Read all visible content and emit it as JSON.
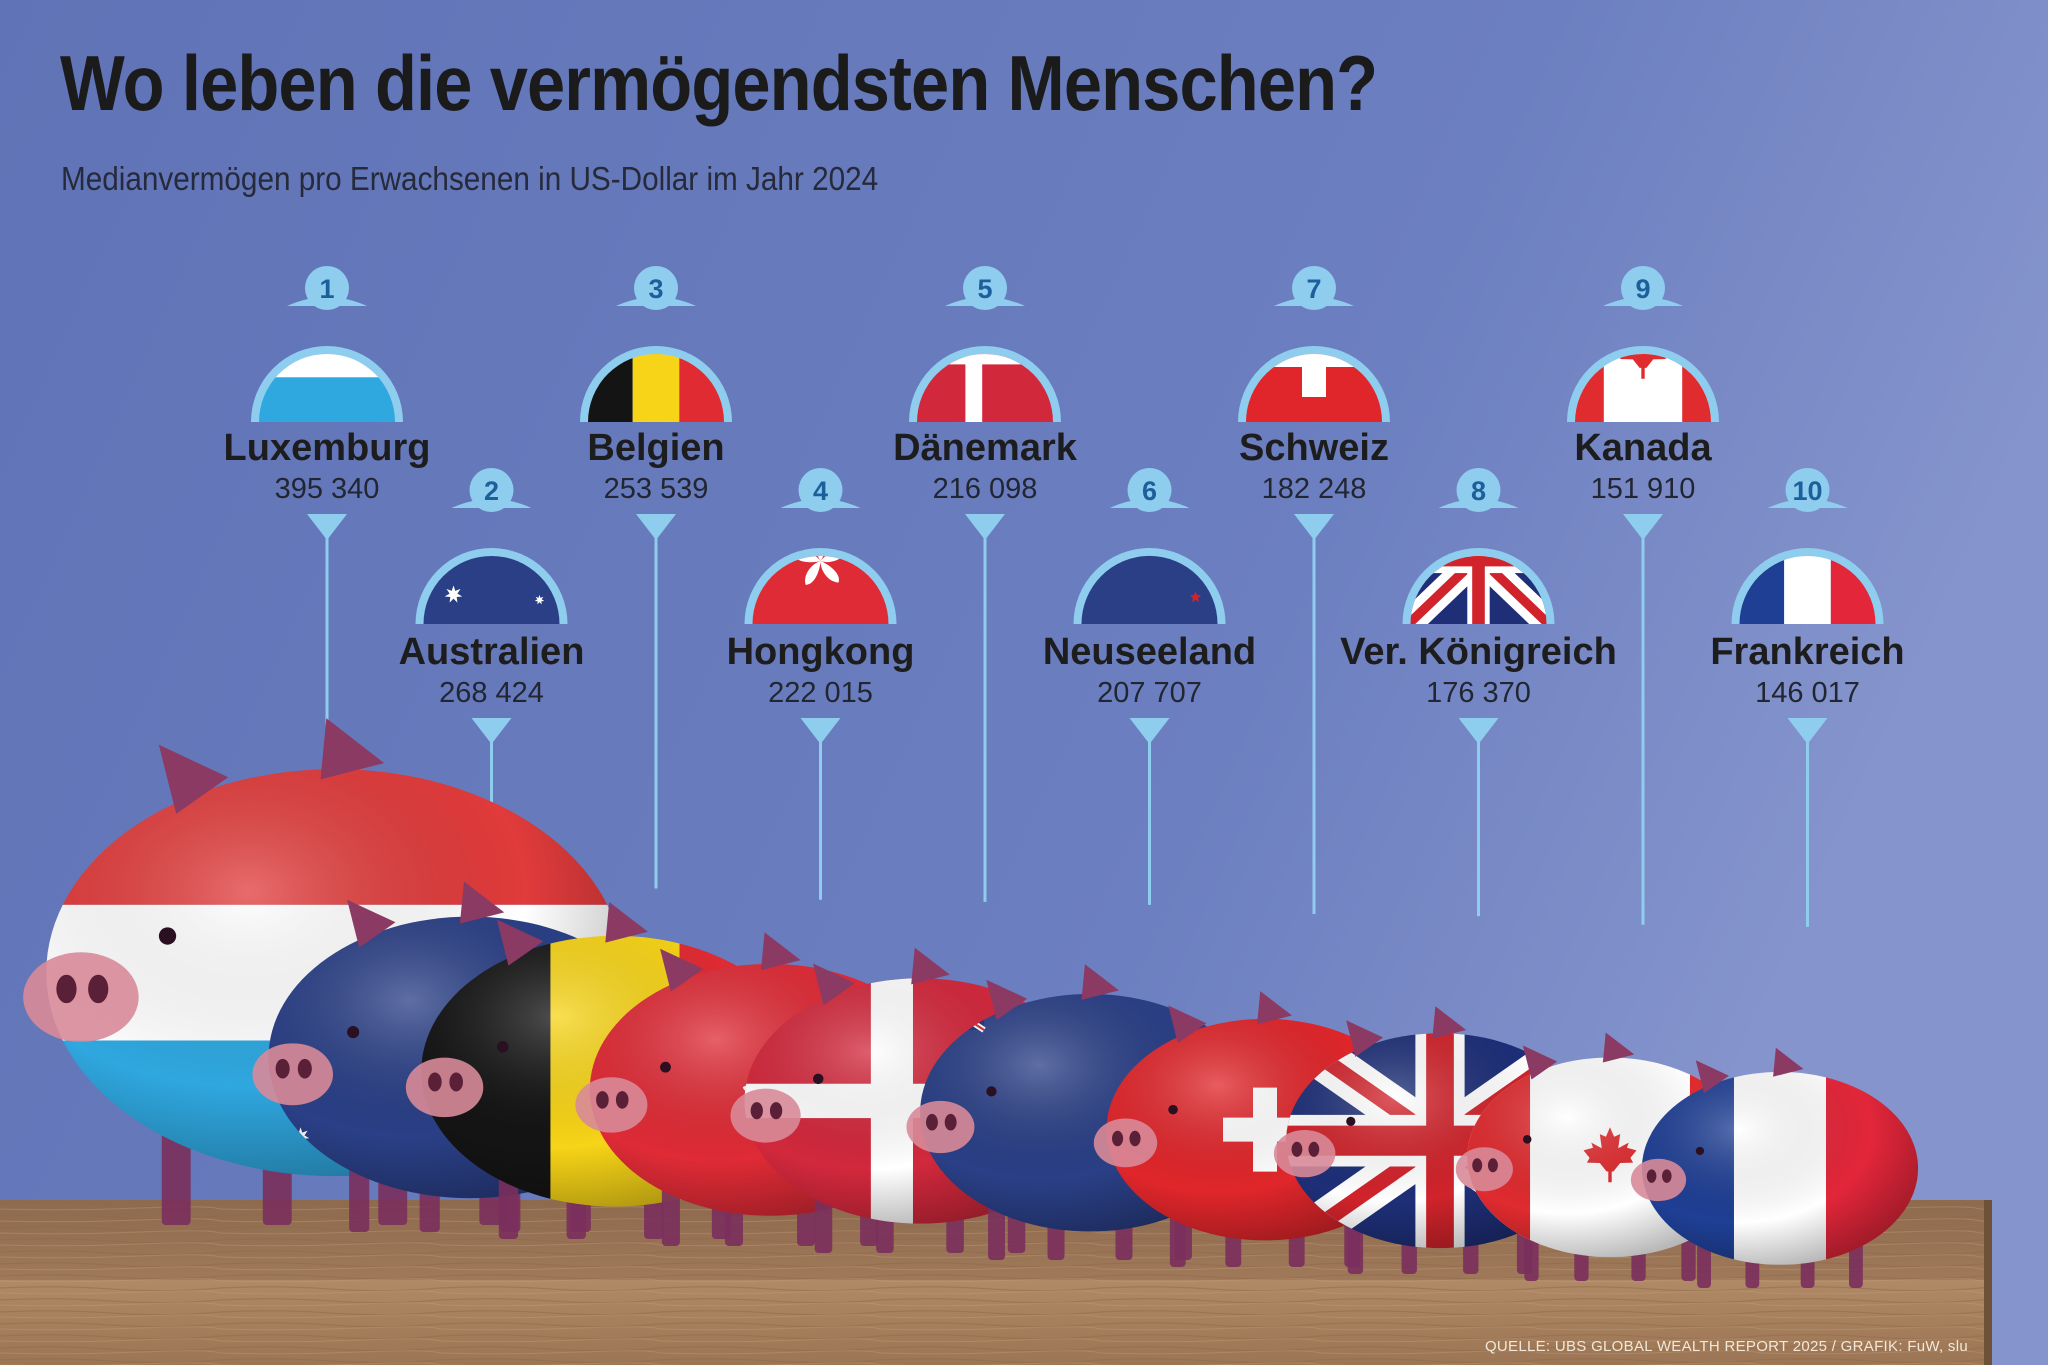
{
  "title": "Wo leben die vermögendsten Menschen?",
  "subtitle": "Medianvermögen pro Erwachsenen in US-Dollar im Jahr 2024",
  "source": "QUELLE: UBS GLOBAL WEALTH REPORT 2025 / GRAFIK: FuW, slu",
  "colors": {
    "background": "#6a7dbd",
    "accent": "#8fcdee",
    "shelf": "#a9825f"
  },
  "chart_data": {
    "type": "bar",
    "title": "Wo leben die vermögendsten Menschen?",
    "subtitle": "Medianvermögen pro Erwachsenen in US-Dollar im Jahr 2024",
    "categories": [
      "Luxemburg",
      "Australien",
      "Belgien",
      "Hongkong",
      "Dänemark",
      "Neuseeland",
      "Schweiz",
      "Ver. Königreich",
      "Kanada",
      "Frankreich"
    ],
    "ranks": [
      "1",
      "2",
      "3",
      "4",
      "5",
      "6",
      "7",
      "8",
      "9",
      "10"
    ],
    "values": [
      395340,
      268424,
      253539,
      222015,
      216098,
      207707,
      182248,
      176370,
      151910,
      146017
    ],
    "value_labels": [
      "395 340",
      "268 424",
      "253 539",
      "222 015",
      "216 098",
      "207 707",
      "182 248",
      "176 370",
      "151 910",
      "146 017"
    ],
    "flags": [
      "luxembourg-flag-icon",
      "australia-flag-icon",
      "belgium-flag-icon",
      "hongkong-flag-icon",
      "denmark-flag-icon",
      "new-zealand-flag-icon",
      "switzerland-flag-icon",
      "united-kingdom-flag-icon",
      "canada-flag-icon",
      "france-flag-icon"
    ],
    "legend": "none",
    "grid": false
  }
}
